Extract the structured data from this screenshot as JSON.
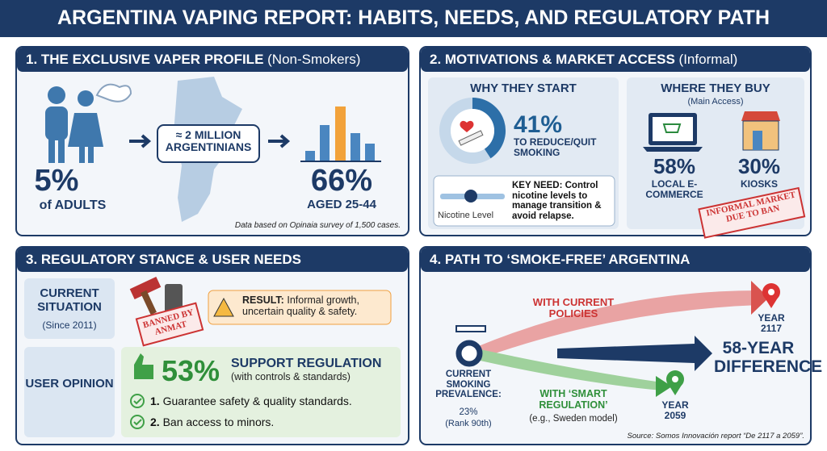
{
  "title": "ARGENTINA VAPING REPORT: HABITS, NEEDS, AND REGULATORY PATH",
  "panel1": {
    "heading": "1. THE EXCLUSIVE VAPER PROFILE",
    "heading_note": "(Non-Smokers)",
    "share": "5%",
    "share_label": "of ADULTS",
    "count": "≈ 2 MILLION ARGENTINIANS",
    "age_share": "66%",
    "age_label": "AGED 25-44",
    "footnote": "Data based on Opinaia survey of 1,500 cases."
  },
  "panel2": {
    "heading": "2. MOTIVATIONS & MARKET ACCESS",
    "heading_note": "(Informal)",
    "why_heading": "WHY THEY START",
    "why_share": "41%",
    "why_label": "TO REDUCE/QUIT SMOKING",
    "slider_label": "Nicotine Level",
    "key_need": "KEY NEED: Control nicotine levels to manage transition & avoid relapse.",
    "where_heading": "WHERE THEY BUY",
    "where_note": "(Main Access)",
    "ecommerce_share": "58%",
    "ecommerce_label": "LOCAL E-COMMERCE",
    "kiosk_share": "30%",
    "kiosk_label": "KIOSKS",
    "stamp": "INFORMAL MARKET DUE TO BAN"
  },
  "panel3": {
    "heading": "3. REGULATORY STANCE & USER NEEDS",
    "current": "CURRENT SITUATION",
    "since": "(Since 2011)",
    "stamp": "BANNED BY ANMAT",
    "result_label": "RESULT:",
    "result": "Informal growth, uncertain quality & safety.",
    "user": "USER OPINION",
    "support_share": "53%",
    "support_label": "SUPPORT REGULATION",
    "support_note": "(with controls & standards)",
    "items": [
      {
        "num": "1.",
        "text": "Guarantee safety & quality standards."
      },
      {
        "num": "2.",
        "text": "Ban access to minors."
      }
    ]
  },
  "panel4": {
    "heading": "4. PATH TO ‘SMOKE-FREE’ ARGENTINA",
    "current_policies": "WITH CURRENT POLICIES",
    "year_current": "YEAR 2117",
    "difference": "58-YEAR DIFFERENCE",
    "smart": "WITH ‘SMART REGULATION’",
    "smart_note": "(e.g., Sweden model)",
    "year_smart": "YEAR 2059",
    "prevalence_label": "CURRENT SMOKING PREVALENCE:",
    "prevalence": "23%",
    "rank": "(Rank 90th)",
    "source": "Source: Somos Innovación report “De 2117 a 2059”."
  }
}
